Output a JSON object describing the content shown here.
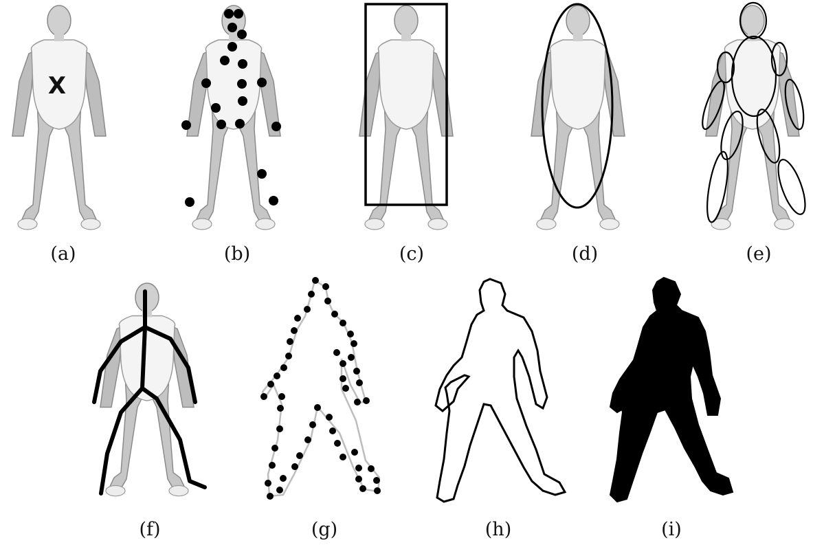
{
  "panels": [
    {
      "id": "a",
      "label": "(a)"
    },
    {
      "id": "b",
      "label": "(b)"
    },
    {
      "id": "c",
      "label": "(c)"
    },
    {
      "id": "d",
      "label": "(d)"
    },
    {
      "id": "e",
      "label": "(e)"
    },
    {
      "id": "f",
      "label": "(f)"
    },
    {
      "id": "g",
      "label": "(g)"
    },
    {
      "id": "h",
      "label": "(h)"
    },
    {
      "id": "i",
      "label": "(i)"
    }
  ],
  "panel_a": {
    "marker": "X"
  },
  "colors": {
    "figure_fill": "#c9c9c9",
    "shirt_fill": "#f2f2f2",
    "annotation": "#000000",
    "silhouette": "#000000",
    "contour_gray": "#bdbdbd"
  }
}
